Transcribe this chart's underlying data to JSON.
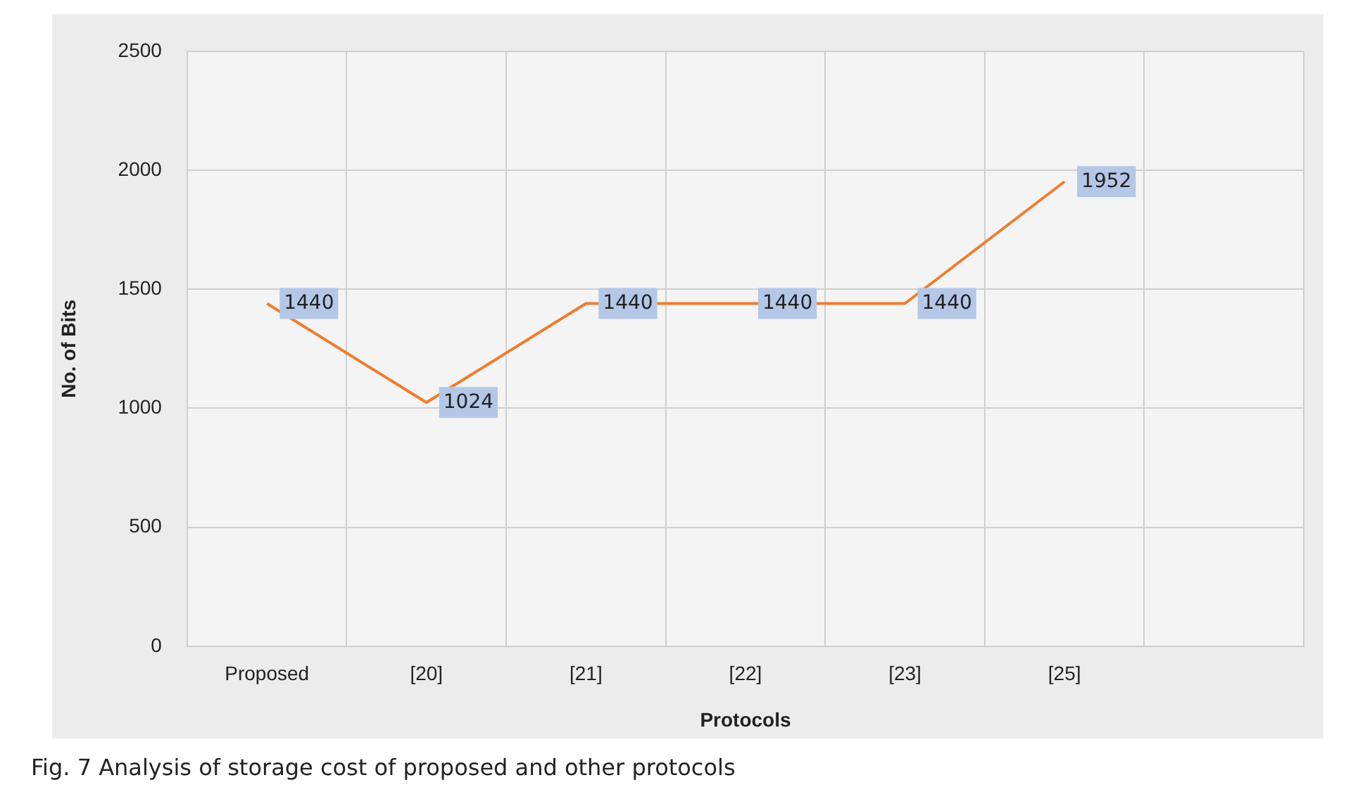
{
  "chart_data": {
    "type": "line",
    "xlabel": "Protocols",
    "ylabel": "No. of Bits",
    "categories": [
      "Proposed",
      "[20]",
      "[21]",
      "[22]",
      "[23]",
      "[25]",
      null
    ],
    "series": [
      {
        "color": "#ed7d31",
        "values": [
          1440,
          1024,
          1440,
          1440,
          1440,
          1952,
          null
        ]
      }
    ],
    "ylim": [
      0,
      2500
    ],
    "yticks": [
      0,
      500,
      1000,
      1500,
      2000,
      2500
    ],
    "grid": true,
    "legend": false,
    "marker": "none",
    "line_style": "solid",
    "data_labels": true,
    "annotations": [
      "Fig. 7  Analysis of storage cost of proposed and other protocols"
    ]
  }
}
